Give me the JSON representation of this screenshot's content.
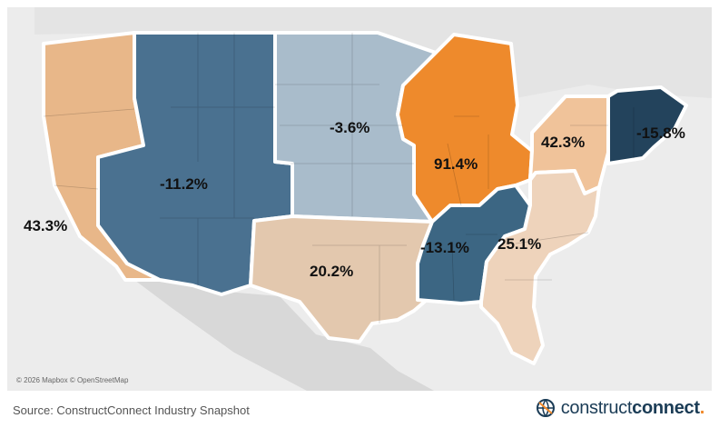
{
  "map": {
    "attribution": "© 2026 Mapbox © OpenStreetMap",
    "base_color": "#ececec",
    "border_color": "#ffffff",
    "regions": [
      {
        "id": "pacific",
        "value": "43.3%",
        "color": "#e8b789",
        "text_color": "#111111"
      },
      {
        "id": "mountain",
        "value": "-11.2%",
        "color": "#4a7190",
        "text_color": "#111111"
      },
      {
        "id": "plains",
        "value": "-3.6%",
        "color": "#a9bccb",
        "text_color": "#111111"
      },
      {
        "id": "great-lakes",
        "value": "91.4%",
        "color": "#ee8a2c",
        "text_color": "#111111"
      },
      {
        "id": "new-york-new-jersey",
        "value": "42.3%",
        "color": "#f0c39a",
        "text_color": "#111111"
      },
      {
        "id": "new-england",
        "value": "-15.8%",
        "color": "#23435c",
        "text_color": "#111111"
      },
      {
        "id": "south-central",
        "value": "20.2%",
        "color": "#e3c8ae",
        "text_color": "#111111"
      },
      {
        "id": "tennessee-valley",
        "value": "-13.1%",
        "color": "#3c6683",
        "text_color": "#111111"
      },
      {
        "id": "southeast",
        "value": "25.1%",
        "color": "#eed3bb",
        "text_color": "#111111"
      }
    ]
  },
  "footer": {
    "source": "Source: ConstructConnect Industry Snapshot"
  },
  "logo": {
    "part1": "construct",
    "part2": "connect",
    "part3": ".",
    "colors": {
      "primary": "#1b3c56",
      "accent": "#f0892a"
    }
  }
}
